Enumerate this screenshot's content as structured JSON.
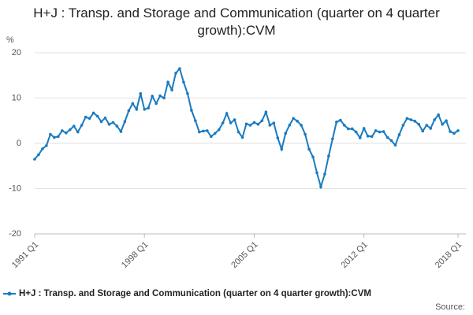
{
  "chart_data": {
    "type": "line",
    "title": "H+J : Transp. and Storage and Communication (quarter on 4 quarter growth):CVM",
    "y_label": "%",
    "note": "Source:",
    "categories": [
      "1991 Q1",
      null,
      null,
      null,
      null,
      null,
      null,
      null,
      null,
      null,
      null,
      null,
      null,
      null,
      null,
      null,
      null,
      null,
      null,
      null,
      null,
      null,
      null,
      null,
      null,
      null,
      null,
      null,
      "1998 Q1",
      null,
      null,
      null,
      null,
      null,
      null,
      null,
      null,
      null,
      null,
      null,
      null,
      null,
      null,
      null,
      null,
      null,
      null,
      null,
      null,
      null,
      null,
      null,
      null,
      null,
      null,
      null,
      "2005 Q1",
      null,
      null,
      null,
      null,
      null,
      null,
      null,
      null,
      null,
      null,
      null,
      null,
      null,
      null,
      null,
      null,
      null,
      null,
      null,
      null,
      null,
      null,
      null,
      null,
      null,
      null,
      null,
      "2012 Q1",
      null,
      null,
      null,
      null,
      null,
      null,
      null,
      null,
      null,
      null,
      null,
      null,
      null,
      null,
      null,
      null,
      null,
      null,
      null,
      null,
      null,
      null,
      null,
      "2018 Q1"
    ],
    "series": [
      {
        "name": "H+J : Transp. and Storage and Communication (quarter on 4 quarter growth):CVM",
        "color": "#1a7ac0",
        "values": [
          -3.5,
          -2.5,
          -1.2,
          -0.5,
          2.0,
          1.3,
          1.5,
          2.8,
          2.3,
          3.0,
          3.8,
          2.5,
          4.0,
          5.8,
          5.5,
          6.7,
          6.0,
          4.8,
          5.6,
          4.2,
          4.6,
          3.8,
          2.6,
          4.8,
          7.2,
          8.8,
          7.5,
          11.0,
          7.5,
          7.8,
          10.4,
          8.8,
          10.5,
          10.0,
          13.5,
          11.8,
          15.5,
          16.5,
          13.5,
          11.0,
          7.3,
          5.0,
          2.5,
          2.7,
          2.8,
          1.5,
          2.2,
          3.0,
          4.5,
          6.6,
          4.5,
          5.2,
          2.5,
          1.3,
          4.3,
          4.0,
          4.6,
          4.2,
          5.0,
          6.9,
          4.0,
          4.5,
          1.2,
          -1.3,
          2.2,
          4.0,
          5.5,
          4.9,
          4.0,
          2.0,
          -1.3,
          -3.0,
          -6.5,
          -9.6,
          -6.8,
          -2.8,
          1.0,
          4.7,
          5.1,
          4.0,
          3.2,
          3.2,
          2.5,
          1.2,
          3.3,
          1.6,
          1.5,
          2.8,
          2.5,
          2.6,
          1.3,
          0.6,
          -0.4,
          1.9,
          4.0,
          5.5,
          5.2,
          4.9,
          4.2,
          2.7,
          4.0,
          3.3,
          5.2,
          6.3,
          4.2,
          5.0,
          2.6,
          2.2,
          2.8
        ]
      }
    ],
    "ylim": [
      -20,
      20
    ],
    "yticks": [
      -20,
      -10,
      0,
      10,
      20
    ],
    "grid": true
  }
}
